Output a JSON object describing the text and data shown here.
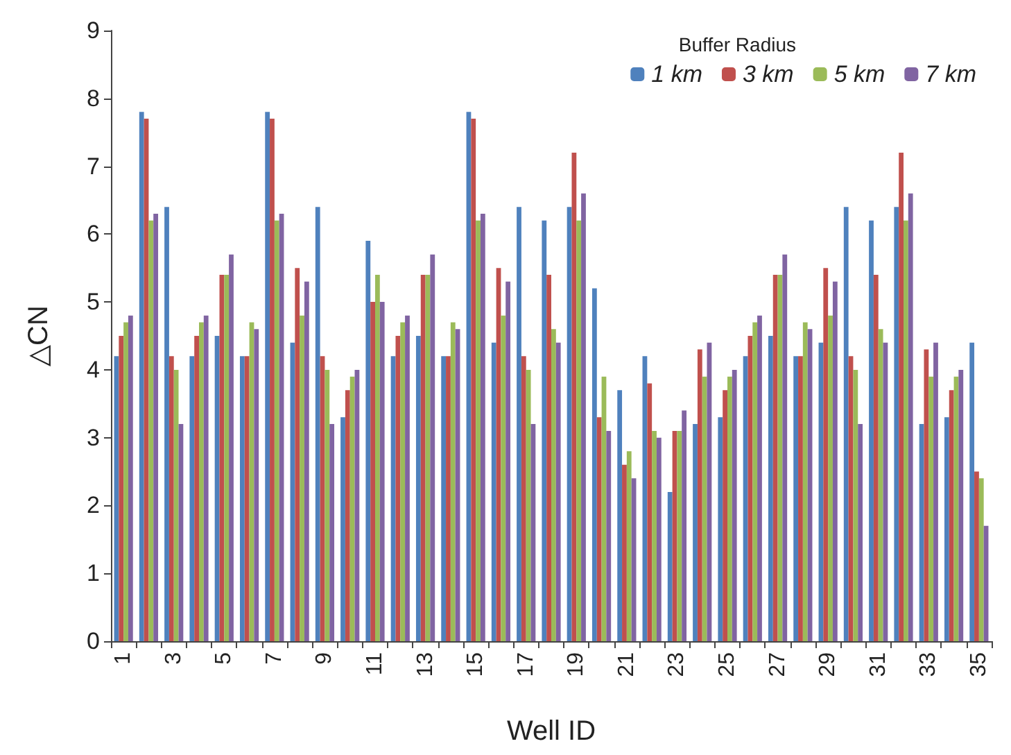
{
  "chart_data": {
    "type": "bar",
    "xlabel": "Well ID",
    "ylabel": "△CN",
    "legend_title": "Buffer Radius",
    "legend": "top right",
    "grid": false,
    "categories": [
      "1",
      null,
      "3",
      null,
      "5",
      null,
      "7",
      null,
      "9",
      null,
      "11",
      null,
      "13",
      null,
      "15",
      null,
      "17",
      null,
      "19",
      null,
      "21",
      null,
      "23",
      null,
      "25",
      null,
      "27",
      null,
      "29",
      null,
      "31",
      null,
      "33",
      null,
      "35"
    ],
    "ylim": [
      0,
      9
    ],
    "yticks": [
      0,
      1,
      2,
      3,
      4,
      5,
      6,
      7,
      8,
      9
    ],
    "series": [
      {
        "name": "1 km",
        "color": "#4f81bd",
        "values": [
          4.2,
          7.8,
          6.4,
          4.2,
          4.5,
          4.2,
          7.8,
          4.4,
          6.4,
          3.3,
          5.9,
          4.2,
          4.5,
          4.2,
          7.8,
          4.4,
          6.4,
          6.2,
          6.4,
          5.2,
          3.7,
          4.2,
          2.2,
          3.2,
          3.3,
          4.2,
          4.5,
          4.2,
          4.4,
          6.4,
          6.2,
          6.4,
          3.2,
          3.3,
          4.4
        ]
      },
      {
        "name": "3 km",
        "color": "#c0504d",
        "values": [
          4.5,
          7.7,
          4.2,
          4.5,
          5.4,
          4.2,
          7.7,
          5.5,
          4.2,
          3.7,
          5.0,
          4.5,
          5.4,
          4.2,
          7.7,
          5.5,
          4.2,
          5.4,
          7.2,
          3.3,
          2.6,
          3.8,
          3.1,
          4.3,
          3.7,
          4.5,
          5.4,
          4.2,
          5.5,
          4.2,
          5.4,
          7.2,
          4.3,
          3.7,
          2.5
        ]
      },
      {
        "name": "5 km",
        "color": "#9bbb59",
        "values": [
          4.7,
          6.2,
          4.0,
          4.7,
          5.4,
          4.7,
          6.2,
          4.8,
          4.0,
          3.9,
          5.4,
          4.7,
          5.4,
          4.7,
          6.2,
          4.8,
          4.0,
          4.6,
          6.2,
          3.9,
          2.8,
          3.1,
          3.1,
          3.9,
          3.9,
          4.7,
          5.4,
          4.7,
          4.8,
          4.0,
          4.6,
          6.2,
          3.9,
          3.9,
          2.4
        ]
      },
      {
        "name": "7 km",
        "color": "#8064a2",
        "values": [
          4.8,
          6.3,
          3.2,
          4.8,
          5.7,
          4.6,
          6.3,
          5.3,
          3.2,
          4.0,
          5.0,
          4.8,
          5.7,
          4.6,
          6.3,
          5.3,
          3.2,
          4.4,
          6.6,
          3.1,
          2.4,
          3.0,
          3.4,
          4.4,
          4.0,
          4.8,
          5.7,
          4.6,
          5.3,
          3.2,
          4.4,
          6.6,
          4.4,
          4.0,
          1.7
        ]
      }
    ]
  }
}
